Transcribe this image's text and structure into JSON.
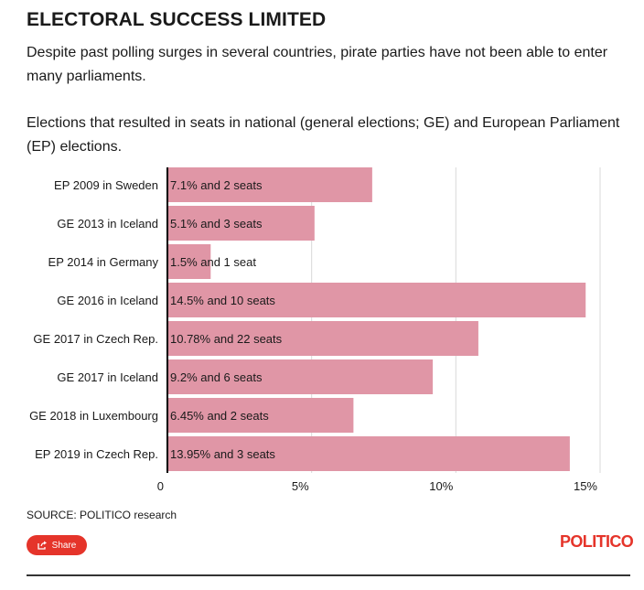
{
  "header": {
    "title": "ELECTORAL SUCCESS LIMITED",
    "subtitle": "Despite past polling surges in several countries, pirate parties have not been able to enter many parliaments.",
    "description": "Elections that resulted in seats in national (general elections; GE) and European Parliament (EP) elections."
  },
  "chart_data": {
    "type": "bar",
    "orientation": "horizontal",
    "categories": [
      "EP 2009 in Sweden",
      "GE 2013 in Iceland",
      "EP 2014 in Germany",
      "GE 2016 in Iceland",
      "GE 2017 in Czech Rep.",
      "GE 2017 in Iceland",
      "GE 2018 in Luxembourg",
      "EP 2019 in Czech Rep."
    ],
    "values": [
      7.1,
      5.1,
      1.5,
      14.5,
      10.78,
      9.2,
      6.45,
      13.95
    ],
    "data_labels": [
      "7.1% and 2 seats",
      "5.1% and 3 seats",
      "1.5% and 1 seat",
      "14.5% and 10 seats",
      "10.78% and 22 seats",
      "9.2% and 6 seats",
      "6.45% and 2 seats",
      "13.95% and 3 seats"
    ],
    "xlim": [
      0,
      15
    ],
    "x_ticks": [
      0,
      5,
      10,
      15
    ],
    "x_tick_labels": [
      "0",
      "5%",
      "10%",
      "15%"
    ],
    "grid": true,
    "bar_color": "#e096a6"
  },
  "footer": {
    "source": "SOURCE: POLITICO research",
    "share_label": "Share",
    "logo": "POLITICO"
  },
  "colors": {
    "accent": "#e5342a",
    "bar": "#e096a6",
    "grid": "#d9d9d9"
  }
}
